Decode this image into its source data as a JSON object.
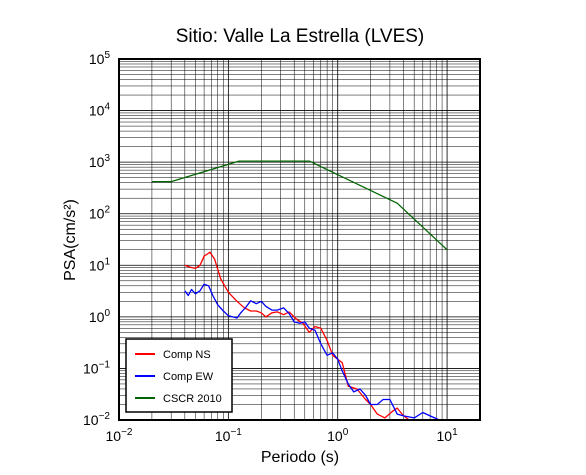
{
  "chart_data": {
    "type": "line",
    "title": "Sitio: Valle La Estrella (LVES)",
    "xlabel": "Periodo (s)",
    "ylabel": "PSA(cm/s²)",
    "x_scale": "log",
    "y_scale": "log",
    "xlim": [
      0.01,
      20
    ],
    "ylim": [
      0.01,
      100000
    ],
    "x_ticks": [
      {
        "value": 0.01,
        "base": "10",
        "exp": "−2"
      },
      {
        "value": 0.1,
        "base": "10",
        "exp": "−1"
      },
      {
        "value": 1,
        "base": "10",
        "exp": "0"
      },
      {
        "value": 10,
        "base": "10",
        "exp": "1"
      }
    ],
    "y_ticks": [
      {
        "value": 0.01,
        "base": "10",
        "exp": "−2"
      },
      {
        "value": 0.1,
        "base": "10",
        "exp": "−1"
      },
      {
        "value": 1,
        "base": "10",
        "exp": "0"
      },
      {
        "value": 10,
        "base": "10",
        "exp": "1"
      },
      {
        "value": 100,
        "base": "10",
        "exp": "2"
      },
      {
        "value": 1000,
        "base": "10",
        "exp": "3"
      },
      {
        "value": 10000,
        "base": "10",
        "exp": "4"
      },
      {
        "value": 100000,
        "base": "10",
        "exp": "5"
      }
    ],
    "grid": true,
    "legend_position": "bottom-left",
    "series": [
      {
        "name": "Comp NS",
        "color": "#ff0000",
        "points": [
          [
            0.04,
            10
          ],
          [
            0.045,
            9.2
          ],
          [
            0.05,
            8.7
          ],
          [
            0.055,
            10
          ],
          [
            0.06,
            15
          ],
          [
            0.068,
            18
          ],
          [
            0.075,
            13
          ],
          [
            0.085,
            5.5
          ],
          [
            0.1,
            3
          ],
          [
            0.12,
            2
          ],
          [
            0.14,
            1.5
          ],
          [
            0.16,
            1.3
          ],
          [
            0.18,
            1.3
          ],
          [
            0.2,
            1.2
          ],
          [
            0.22,
            1.0
          ],
          [
            0.25,
            1.2
          ],
          [
            0.28,
            1.25
          ],
          [
            0.32,
            1.1
          ],
          [
            0.36,
            1.25
          ],
          [
            0.42,
            0.9
          ],
          [
            0.48,
            0.75
          ],
          [
            0.55,
            0.5
          ],
          [
            0.62,
            0.65
          ],
          [
            0.7,
            0.6
          ],
          [
            0.8,
            0.35
          ],
          [
            0.9,
            0.18
          ],
          [
            1.0,
            0.15
          ],
          [
            1.1,
            0.13
          ],
          [
            1.25,
            0.045
          ],
          [
            1.5,
            0.04
          ],
          [
            1.8,
            0.025
          ],
          [
            2.0,
            0.02
          ],
          [
            2.3,
            0.013
          ],
          [
            2.7,
            0.011
          ],
          [
            3.2,
            0.015
          ],
          [
            3.5,
            0.017
          ],
          [
            4.0,
            0.012
          ],
          [
            4.5,
            0.01
          ]
        ]
      },
      {
        "name": "Comp EW",
        "color": "#0000ff",
        "points": [
          [
            0.04,
            3.2
          ],
          [
            0.043,
            2.6
          ],
          [
            0.046,
            3.4
          ],
          [
            0.05,
            2.8
          ],
          [
            0.055,
            3.2
          ],
          [
            0.06,
            4.3
          ],
          [
            0.066,
            4.0
          ],
          [
            0.072,
            2.6
          ],
          [
            0.08,
            1.7
          ],
          [
            0.09,
            1.3
          ],
          [
            0.1,
            1.05
          ],
          [
            0.11,
            1.0
          ],
          [
            0.12,
            0.95
          ],
          [
            0.13,
            1.2
          ],
          [
            0.145,
            1.55
          ],
          [
            0.16,
            2.05
          ],
          [
            0.18,
            1.8
          ],
          [
            0.2,
            2.0
          ],
          [
            0.22,
            1.6
          ],
          [
            0.25,
            1.35
          ],
          [
            0.28,
            1.35
          ],
          [
            0.32,
            1.5
          ],
          [
            0.36,
            1.15
          ],
          [
            0.4,
            0.8
          ],
          [
            0.45,
            0.75
          ],
          [
            0.5,
            0.8
          ],
          [
            0.55,
            0.6
          ],
          [
            0.62,
            0.55
          ],
          [
            0.7,
            0.3
          ],
          [
            0.8,
            0.18
          ],
          [
            0.9,
            0.2
          ],
          [
            1.0,
            0.15
          ],
          [
            1.1,
            0.09
          ],
          [
            1.25,
            0.05
          ],
          [
            1.4,
            0.035
          ],
          [
            1.6,
            0.04
          ],
          [
            1.8,
            0.03
          ],
          [
            2.0,
            0.02
          ],
          [
            2.3,
            0.02
          ],
          [
            2.6,
            0.025
          ],
          [
            3.0,
            0.025
          ],
          [
            3.5,
            0.013
          ],
          [
            4.0,
            0.012
          ],
          [
            5.0,
            0.011
          ],
          [
            6.0,
            0.014
          ],
          [
            7.0,
            0.012
          ],
          [
            8.5,
            0.01
          ]
        ]
      },
      {
        "name": "CSCR 2010",
        "color": "#006400",
        "points": [
          [
            0.02,
            420
          ],
          [
            0.03,
            420
          ],
          [
            0.125,
            1050
          ],
          [
            0.55,
            1050
          ],
          [
            3.5,
            160
          ],
          [
            10,
            20
          ]
        ]
      }
    ]
  }
}
